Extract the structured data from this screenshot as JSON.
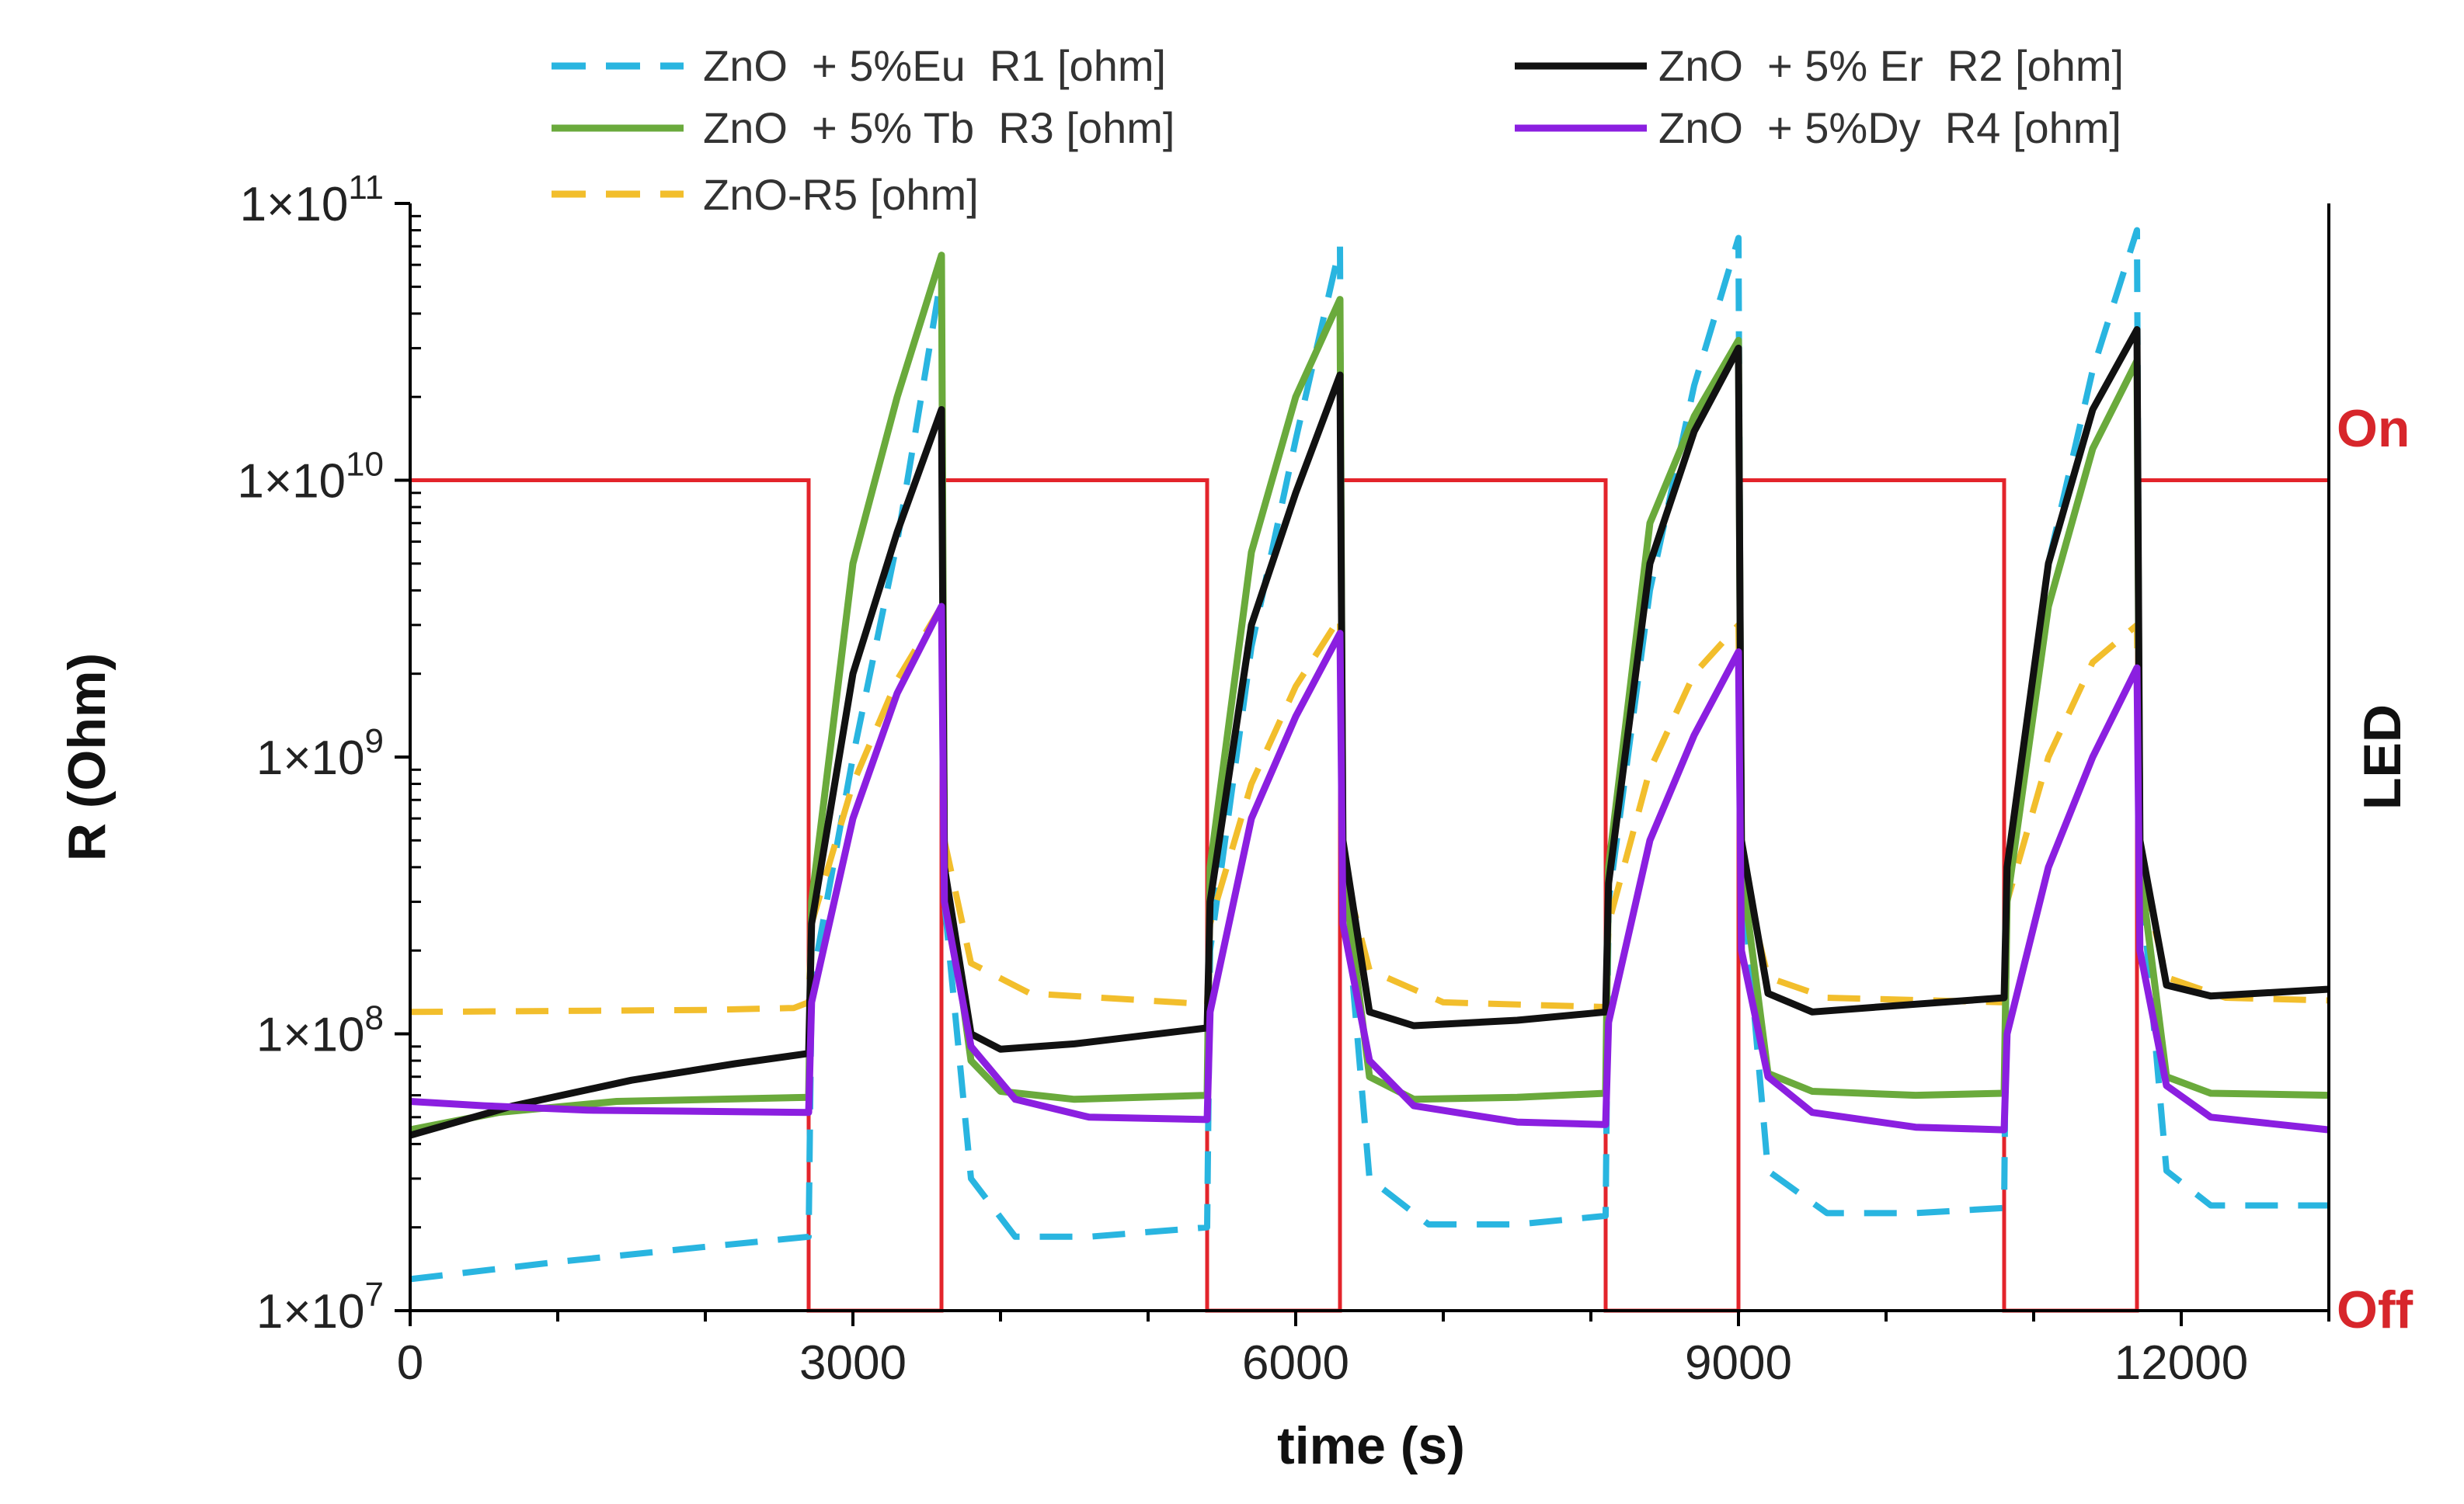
{
  "chart_data": {
    "type": "line",
    "title": "",
    "xlabel": "time (s)",
    "ylabel": "R (Ohm)",
    "y2label": "LED",
    "y2_states": [
      "Off",
      "On"
    ],
    "xlim": [
      0,
      13000
    ],
    "ylim": [
      10000000,
      100000000000
    ],
    "yscale": "log",
    "x_ticks": [
      0,
      3000,
      6000,
      9000,
      12000
    ],
    "x_tick_labels": [
      "0",
      "3000",
      "6000",
      "9000",
      "12000"
    ],
    "y_ticks": [
      {
        "value": 10000000,
        "mantissa": "1×10",
        "exp": "7"
      },
      {
        "value": 100000000,
        "mantissa": "1×10",
        "exp": "8"
      },
      {
        "value": 1000000000,
        "mantissa": "1×10",
        "exp": "9"
      },
      {
        "value": 10000000000,
        "mantissa": "1×10",
        "exp": "10"
      },
      {
        "value": 100000000000,
        "mantissa": "1×10",
        "exp": "11"
      }
    ],
    "grid": false,
    "legend_position": "top",
    "led": {
      "color": "#e3242b",
      "on_intervals": [
        [
          0,
          2700
        ],
        [
          3600,
          5400
        ],
        [
          6300,
          8100
        ],
        [
          9000,
          10800
        ],
        [
          11700,
          13000
        ]
      ]
    },
    "series": [
      {
        "name": "ZnO  + 5%Eu  R1 [ohm]",
        "color": "#29b5e0",
        "dash": true,
        "points": [
          [
            0,
            13000000
          ],
          [
            1000,
            15000000
          ],
          [
            2000,
            17000000
          ],
          [
            2700,
            18500000
          ],
          [
            2720,
            150000000
          ],
          [
            3000,
            1000000000
          ],
          [
            3300,
            6000000000
          ],
          [
            3600,
            55000000000
          ],
          [
            3620,
            300000000
          ],
          [
            3800,
            30000000
          ],
          [
            4100,
            18500000
          ],
          [
            4600,
            18500000
          ],
          [
            5400,
            20000000
          ],
          [
            5420,
            200000000
          ],
          [
            5700,
            2500000000
          ],
          [
            6000,
            14000000000
          ],
          [
            6300,
            70000000000
          ],
          [
            6320,
            400000000
          ],
          [
            6500,
            30000000
          ],
          [
            6900,
            20500000
          ],
          [
            7500,
            20500000
          ],
          [
            8100,
            22000000
          ],
          [
            8120,
            300000000
          ],
          [
            8400,
            4000000000
          ],
          [
            8700,
            22000000000
          ],
          [
            9000,
            75000000000
          ],
          [
            9020,
            400000000
          ],
          [
            9200,
            32000000
          ],
          [
            9600,
            22500000
          ],
          [
            10200,
            22500000
          ],
          [
            10800,
            23500000
          ],
          [
            10820,
            350000000
          ],
          [
            11100,
            5000000000
          ],
          [
            11400,
            25000000000
          ],
          [
            11700,
            80000000000
          ],
          [
            11720,
            400000000
          ],
          [
            11900,
            32000000
          ],
          [
            12200,
            24000000
          ],
          [
            13000,
            24000000
          ]
        ]
      },
      {
        "name": "ZnO  + 5% Er  R2 [ohm]",
        "color": "#111111",
        "dash": false,
        "points": [
          [
            0,
            43000000
          ],
          [
            700,
            55000000
          ],
          [
            1500,
            68000000
          ],
          [
            2200,
            78000000
          ],
          [
            2700,
            85000000
          ],
          [
            2720,
            250000000
          ],
          [
            3000,
            2000000000
          ],
          [
            3300,
            6500000000
          ],
          [
            3600,
            18000000000
          ],
          [
            3620,
            400000000
          ],
          [
            3800,
            100000000
          ],
          [
            4000,
            88000000
          ],
          [
            4500,
            92000000
          ],
          [
            5400,
            105000000
          ],
          [
            5420,
            300000000
          ],
          [
            5700,
            3000000000
          ],
          [
            6000,
            9000000000
          ],
          [
            6300,
            24000000000
          ],
          [
            6320,
            500000000
          ],
          [
            6500,
            120000000
          ],
          [
            6800,
            107000000
          ],
          [
            7500,
            112000000
          ],
          [
            8100,
            120000000
          ],
          [
            8120,
            350000000
          ],
          [
            8400,
            5000000000
          ],
          [
            8700,
            15000000000
          ],
          [
            9000,
            30000000000
          ],
          [
            9020,
            500000000
          ],
          [
            9200,
            140000000
          ],
          [
            9500,
            120000000
          ],
          [
            10200,
            128000000
          ],
          [
            10800,
            135000000
          ],
          [
            10820,
            400000000
          ],
          [
            11100,
            5000000000
          ],
          [
            11400,
            18000000000
          ],
          [
            11700,
            35000000000
          ],
          [
            11720,
            500000000
          ],
          [
            11900,
            150000000
          ],
          [
            12200,
            137000000
          ],
          [
            13000,
            145000000
          ]
        ]
      },
      {
        "name": "ZnO  + 5% Tb  R3 [ohm]",
        "color": "#6aaa3c",
        "dash": false,
        "points": [
          [
            0,
            45000000
          ],
          [
            600,
            52000000
          ],
          [
            1400,
            57000000
          ],
          [
            2700,
            59000000
          ],
          [
            2720,
            300000000
          ],
          [
            3000,
            5000000000
          ],
          [
            3300,
            20000000000
          ],
          [
            3600,
            65000000000
          ],
          [
            3620,
            400000000
          ],
          [
            3800,
            80000000
          ],
          [
            4000,
            62000000
          ],
          [
            4500,
            58000000
          ],
          [
            5400,
            60000000
          ],
          [
            5420,
            400000000
          ],
          [
            5700,
            5500000000
          ],
          [
            6000,
            20000000000
          ],
          [
            6300,
            45000000000
          ],
          [
            6320,
            400000000
          ],
          [
            6500,
            70000000
          ],
          [
            6800,
            58000000
          ],
          [
            7500,
            59000000
          ],
          [
            8100,
            61000000
          ],
          [
            8120,
            400000000
          ],
          [
            8400,
            7000000000
          ],
          [
            8700,
            17000000000
          ],
          [
            9000,
            32000000000
          ],
          [
            9020,
            400000000
          ],
          [
            9200,
            72000000
          ],
          [
            9500,
            62000000
          ],
          [
            10200,
            60000000
          ],
          [
            10800,
            61000000
          ],
          [
            10820,
            300000000
          ],
          [
            11100,
            3500000000
          ],
          [
            11400,
            13000000000
          ],
          [
            11700,
            27000000000
          ],
          [
            11720,
            400000000
          ],
          [
            11900,
            70000000
          ],
          [
            12200,
            61000000
          ],
          [
            13000,
            60000000
          ]
        ]
      },
      {
        "name": "ZnO  + 5%Dy  R4 [ohm]",
        "color": "#8b1fe0",
        "dash": false,
        "points": [
          [
            0,
            57000000
          ],
          [
            500,
            55000000
          ],
          [
            1200,
            53000000
          ],
          [
            2700,
            52000000
          ],
          [
            2720,
            130000000
          ],
          [
            3000,
            600000000
          ],
          [
            3300,
            1700000000
          ],
          [
            3600,
            3500000000
          ],
          [
            3620,
            300000000
          ],
          [
            3800,
            90000000
          ],
          [
            4100,
            58000000
          ],
          [
            4600,
            50000000
          ],
          [
            5400,
            49000000
          ],
          [
            5420,
            120000000
          ],
          [
            5700,
            600000000
          ],
          [
            6000,
            1400000000
          ],
          [
            6300,
            2800000000
          ],
          [
            6320,
            250000000
          ],
          [
            6500,
            80000000
          ],
          [
            6800,
            55000000
          ],
          [
            7500,
            48000000
          ],
          [
            8100,
            47000000
          ],
          [
            8120,
            110000000
          ],
          [
            8400,
            500000000
          ],
          [
            8700,
            1200000000
          ],
          [
            9000,
            2400000000
          ],
          [
            9020,
            200000000
          ],
          [
            9200,
            70000000
          ],
          [
            9500,
            52000000
          ],
          [
            10200,
            46000000
          ],
          [
            10800,
            45000000
          ],
          [
            10820,
            100000000
          ],
          [
            11100,
            400000000
          ],
          [
            11400,
            1000000000
          ],
          [
            11700,
            2100000000
          ],
          [
            11720,
            200000000
          ],
          [
            11900,
            65000000
          ],
          [
            12200,
            50000000
          ],
          [
            13000,
            45000000
          ]
        ]
      },
      {
        "name": "ZnO-R5 [ohm]",
        "color": "#f2be2c",
        "dash": true,
        "points": [
          [
            0,
            120000000
          ],
          [
            1000,
            121000000
          ],
          [
            2000,
            122000000
          ],
          [
            2600,
            124000000
          ],
          [
            2700,
            130000000
          ],
          [
            2720,
            250000000
          ],
          [
            3000,
            800000000
          ],
          [
            3300,
            1900000000
          ],
          [
            3600,
            3500000000
          ],
          [
            3620,
            500000000
          ],
          [
            3800,
            180000000
          ],
          [
            4200,
            140000000
          ],
          [
            5400,
            128000000
          ],
          [
            5420,
            250000000
          ],
          [
            5700,
            800000000
          ],
          [
            6000,
            1800000000
          ],
          [
            6300,
            3200000000
          ],
          [
            6320,
            400000000
          ],
          [
            6500,
            170000000
          ],
          [
            7000,
            130000000
          ],
          [
            8100,
            125000000
          ],
          [
            8120,
            250000000
          ],
          [
            8400,
            900000000
          ],
          [
            8700,
            2000000000
          ],
          [
            9000,
            3000000000
          ],
          [
            9020,
            400000000
          ],
          [
            9200,
            160000000
          ],
          [
            9600,
            135000000
          ],
          [
            10800,
            130000000
          ],
          [
            10820,
            300000000
          ],
          [
            11100,
            1000000000
          ],
          [
            11400,
            2200000000
          ],
          [
            11700,
            3000000000
          ],
          [
            11720,
            400000000
          ],
          [
            11900,
            160000000
          ],
          [
            12300,
            135000000
          ],
          [
            13000,
            132000000
          ]
        ]
      }
    ]
  }
}
